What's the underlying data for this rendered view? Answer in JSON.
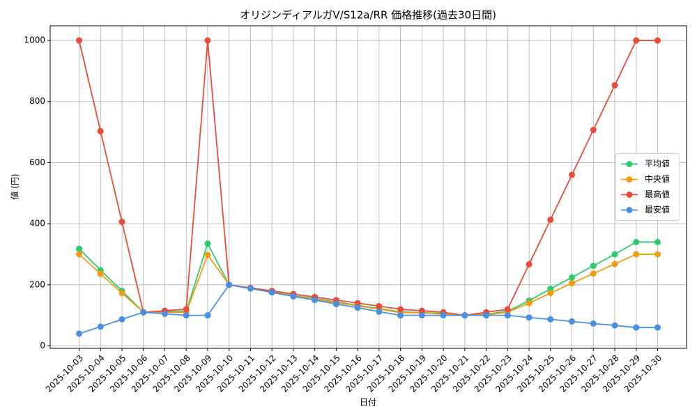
{
  "chart_data": {
    "type": "line",
    "title": "オリジンディアルガV/S12a/RR 価格推移(過去30日間)",
    "x_label": "日付",
    "y_label": "値 (円)",
    "categories": [
      "2025-10-03",
      "2025-10-04",
      "2025-10-05",
      "2025-10-06",
      "2025-10-07",
      "2025-10-08",
      "2025-10-09",
      "2025-10-10",
      "2025-10-11",
      "2025-10-12",
      "2025-10-13",
      "2025-10-14",
      "2025-10-15",
      "2025-10-16",
      "2025-10-17",
      "2025-10-18",
      "2025-10-19",
      "2025-10-20",
      "2025-10-21",
      "2025-10-22",
      "2025-10-23",
      "2025-10-24",
      "2025-10-25",
      "2025-10-26",
      "2025-10-27",
      "2025-10-28",
      "2025-10-29",
      "2025-10-30"
    ],
    "series": [
      {
        "name": "平均値",
        "color": "#2ecc71",
        "values": [
          318,
          248,
          180,
          110,
          112,
          113,
          335,
          200,
          188,
          176,
          165,
          155,
          144,
          133,
          122,
          111,
          109,
          106,
          100,
          104,
          113,
          148,
          187,
          224,
          262,
          300,
          340,
          340
        ]
      },
      {
        "name": "中央値",
        "color": "#f39c12",
        "values": [
          300,
          236,
          173,
          110,
          110,
          110,
          298,
          200,
          188,
          176,
          164,
          153,
          142,
          131,
          120,
          109,
          108,
          104,
          100,
          102,
          110,
          140,
          173,
          205,
          237,
          268,
          300,
          300
        ]
      },
      {
        "name": "最高値",
        "color": "#e74c3c",
        "values": [
          1000,
          703,
          406,
          110,
          115,
          120,
          1000,
          200,
          190,
          180,
          170,
          160,
          150,
          140,
          130,
          120,
          115,
          110,
          100,
          110,
          120,
          267,
          413,
          560,
          707,
          853,
          1000,
          1000
        ]
      },
      {
        "name": "最安値",
        "color": "#4a90e2",
        "values": [
          40,
          63,
          87,
          110,
          105,
          100,
          100,
          200,
          188,
          175,
          162,
          150,
          137,
          125,
          112,
          100,
          100,
          100,
          100,
          100,
          100,
          93,
          87,
          80,
          73,
          67,
          60,
          60
        ]
      }
    ],
    "ylim": [
      -8,
      1048
    ],
    "yticks": [
      0,
      200,
      400,
      600,
      800,
      1000
    ],
    "grid": true,
    "legend": "right"
  }
}
